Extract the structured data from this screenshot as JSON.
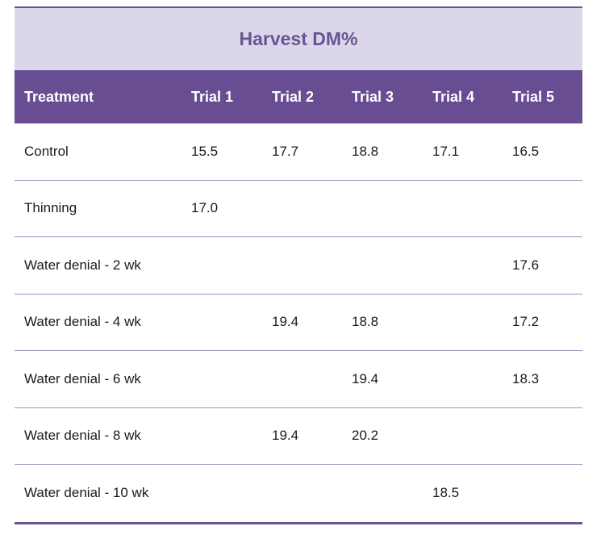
{
  "title": "Harvest DM%",
  "headers": [
    "Treatment",
    "Trial 1",
    "Trial 2",
    "Trial 3",
    "Trial 4",
    "Trial 5"
  ],
  "rows": [
    [
      "Control",
      "15.5",
      "17.7",
      "18.8",
      "17.1",
      "16.5"
    ],
    [
      "Thinning",
      "17.0",
      "",
      "",
      "",
      ""
    ],
    [
      "Water denial - 2 wk",
      "",
      "",
      "",
      "",
      "17.6"
    ],
    [
      "Water denial - 4 wk",
      "",
      "19.4",
      "18.8",
      "",
      "17.2"
    ],
    [
      "Water denial - 6 wk",
      "",
      "",
      "19.4",
      "",
      "18.3"
    ],
    [
      "Water denial - 8 wk",
      "",
      "19.4",
      "20.2",
      "",
      ""
    ],
    [
      "Water denial - 10 wk",
      "",
      "",
      "",
      "18.5",
      ""
    ]
  ],
  "colors": {
    "accent": "#684d92",
    "title_band": "#dbd7e8",
    "row_divider": "#9e92c1"
  }
}
